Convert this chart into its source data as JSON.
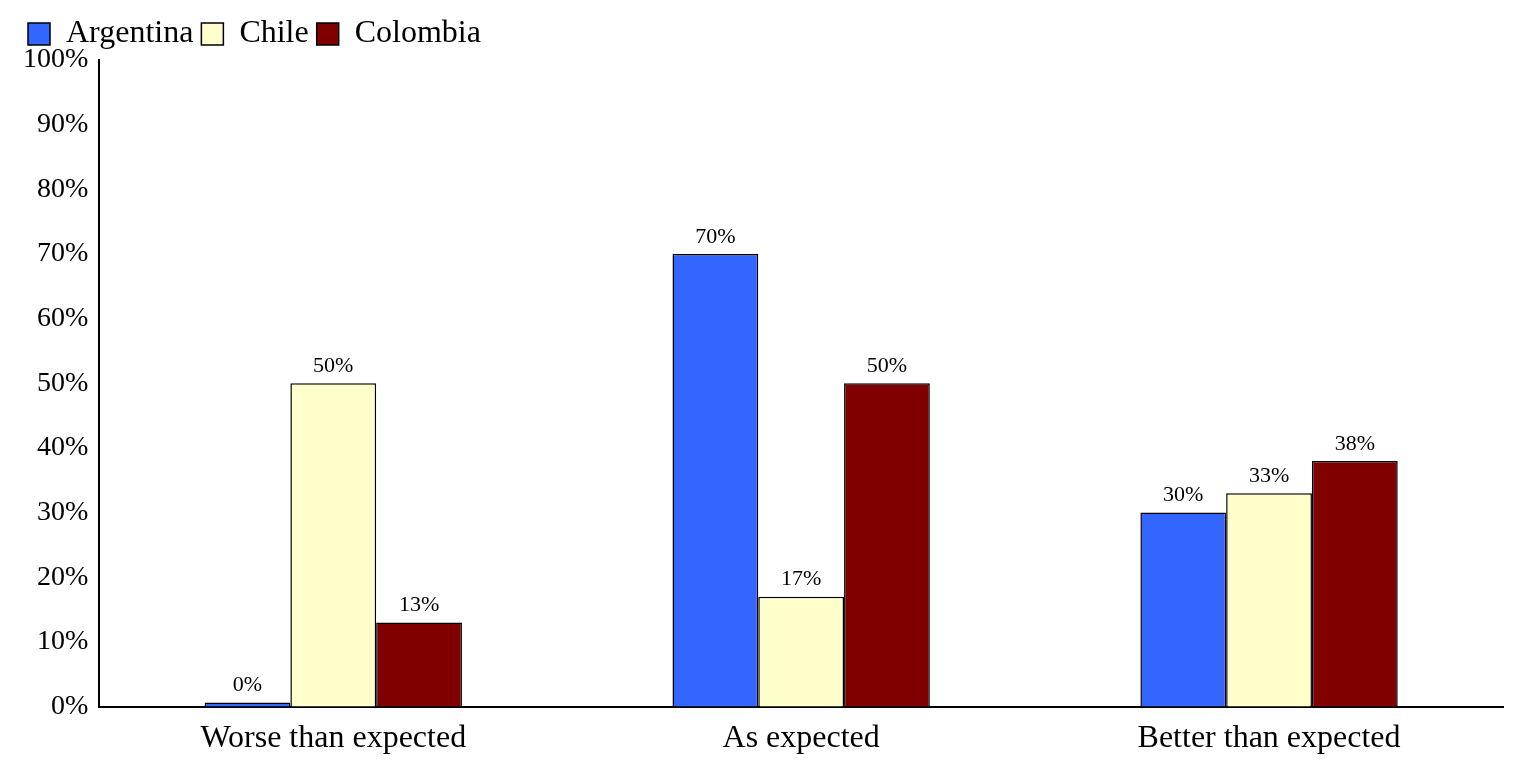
{
  "chart_data": {
    "type": "bar",
    "categories": [
      "Worse than expected",
      "As expected",
      "Better than expected"
    ],
    "series": [
      {
        "name": "Argentina",
        "color": "#3366ff",
        "values": [
          0,
          70,
          30
        ],
        "value_labels": [
          "0%",
          "70%",
          "30%"
        ]
      },
      {
        "name": "Chile",
        "color": "#ffffcc",
        "values": [
          50,
          17,
          33
        ],
        "value_labels": [
          "50%",
          "17%",
          "33%"
        ]
      },
      {
        "name": "Colombia",
        "color": "#800000",
        "values": [
          13,
          50,
          38
        ],
        "value_labels": [
          "13%",
          "50%",
          "38%"
        ]
      }
    ],
    "ylim": [
      0,
      100
    ],
    "yticks": [
      {
        "value": 0,
        "label": "0%"
      },
      {
        "value": 10,
        "label": "10%"
      },
      {
        "value": 20,
        "label": "20%"
      },
      {
        "value": 30,
        "label": "30%"
      },
      {
        "value": 40,
        "label": "40%"
      },
      {
        "value": 50,
        "label": "50%"
      },
      {
        "value": 60,
        "label": "60%"
      },
      {
        "value": 70,
        "label": "70%"
      },
      {
        "value": 80,
        "label": "80%"
      },
      {
        "value": 90,
        "label": "90%"
      },
      {
        "value": 100,
        "label": "100%"
      }
    ],
    "legend": "top left",
    "grid": false
  }
}
